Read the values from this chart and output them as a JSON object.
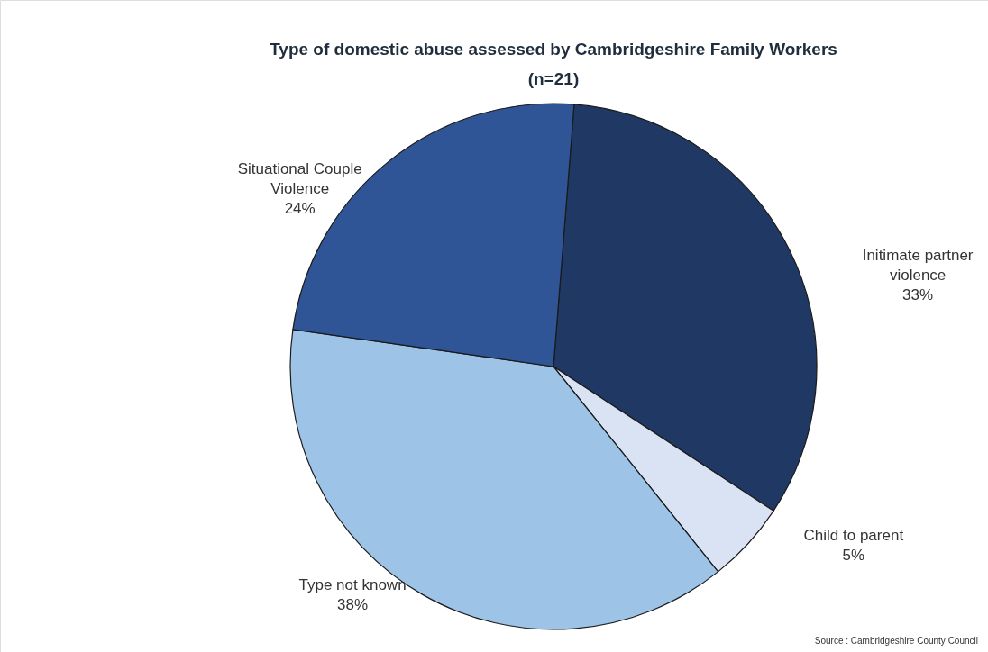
{
  "chart_data": {
    "type": "pie",
    "title": "Type of domestic abuse assessed by Cambridgeshire Family Workers",
    "subtitle": "(n=21)",
    "categories": [
      "Initimate partner violence",
      "Child to parent",
      "Type not known",
      "Situational Couple Violence"
    ],
    "values": [
      33,
      5,
      38,
      24
    ],
    "value_labels": [
      "33%",
      "5%",
      "38%",
      "24%"
    ],
    "colors": [
      "#203864",
      "#dae3f3",
      "#9dc3e6",
      "#2f5597"
    ],
    "annotations": [
      "Source : Cambridgeshire County Council"
    ]
  }
}
